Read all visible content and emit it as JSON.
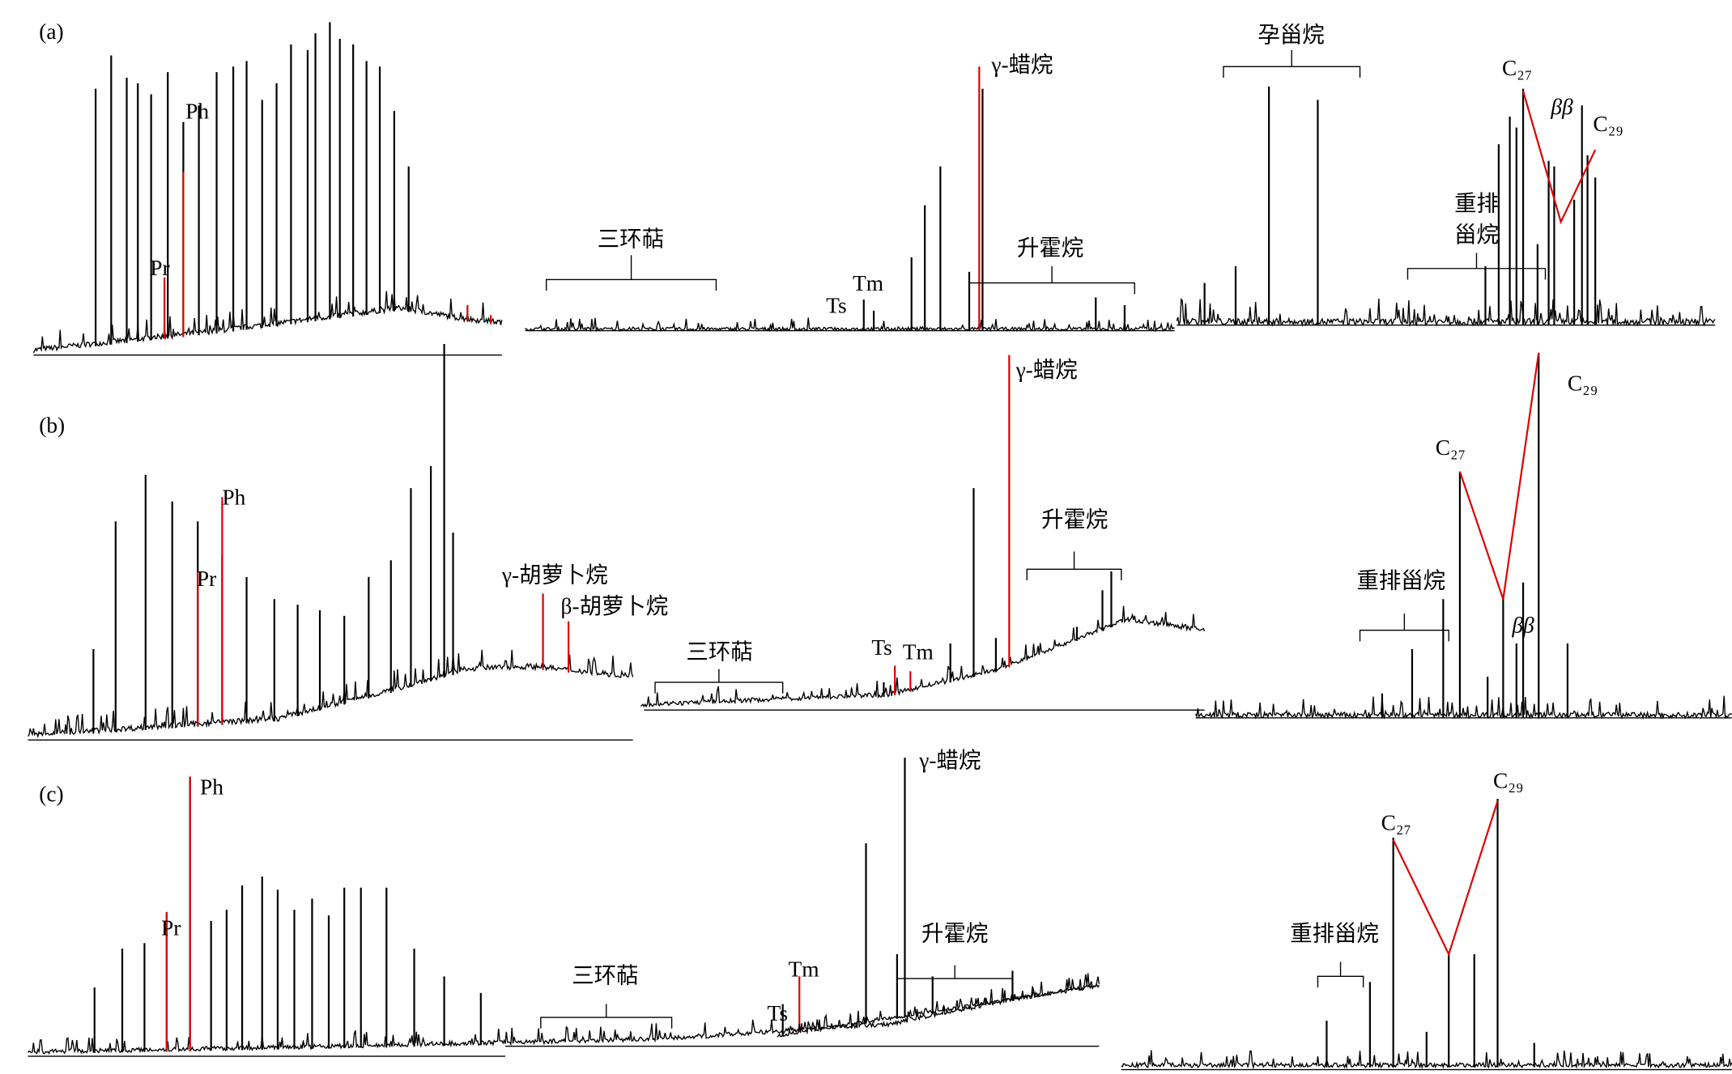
{
  "panels": [
    {
      "label": "(a)",
      "alkanes": [
        "Pr",
        "Ph"
      ],
      "terpanes": [
        "三环萜",
        "Ts",
        "Tm",
        "γ-蜡烷",
        "升霍烷"
      ],
      "steranes": [
        "孕甾烷",
        "C₂₇",
        "ββ",
        "C₂₉",
        "重排",
        "甾烷"
      ]
    },
    {
      "label": "(b)",
      "alkanes": [
        "Pr",
        "Ph",
        "γ-胡萝卜烷",
        "β-胡萝卜烷"
      ],
      "terpanes": [
        "三环萜",
        "Ts",
        "Tm",
        "γ-蜡烷",
        "升霍烷"
      ],
      "steranes": [
        "重排甾烷",
        "C₂₇",
        "ββ",
        "C₂₉"
      ]
    },
    {
      "label": "(c)",
      "alkanes": [
        "Pr",
        "Ph"
      ],
      "terpanes": [
        "三环萜",
        "Ts",
        "Tm",
        "γ-蜡烷",
        "升霍烷"
      ],
      "steranes": [
        "重排甾烷",
        "C₂₇",
        "C₂₉"
      ]
    }
  ]
}
